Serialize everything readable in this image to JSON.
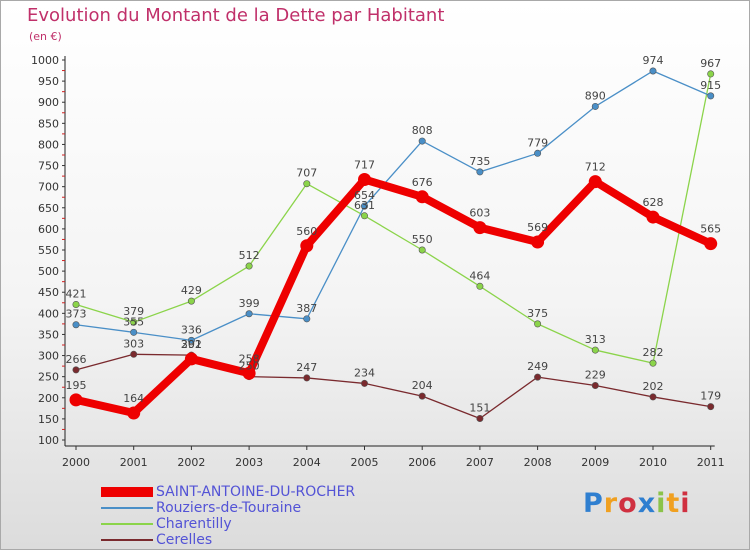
{
  "title": "Evolution du Montant de la Dette par Habitant",
  "subtitle": "(en €)",
  "watermark": {
    "text": "Proxiti"
  },
  "chart_data": {
    "type": "line",
    "x": [
      "2000",
      "2001",
      "2002",
      "2003",
      "2004",
      "2005",
      "2006",
      "2007",
      "2008",
      "2009",
      "2010",
      "2011"
    ],
    "ylim": [
      100,
      1000
    ],
    "yticks": [
      100,
      150,
      200,
      250,
      300,
      350,
      400,
      450,
      500,
      550,
      600,
      650,
      700,
      750,
      800,
      850,
      900,
      950,
      1000
    ],
    "grid": false,
    "legend_position": "bottom-left",
    "series": [
      {
        "name": "SAINT-ANTOINE-DU-ROCHER",
        "color": "#ee0000",
        "values": [
          195,
          164,
          292,
          258,
          560,
          717,
          676,
          603,
          569,
          712,
          628,
          565
        ]
      },
      {
        "name": "Rouziers-de-Touraine",
        "color": "#4a8fc7",
        "values": [
          373,
          355,
          336,
          399,
          387,
          654,
          808,
          735,
          779,
          890,
          974,
          915
        ]
      },
      {
        "name": "Charentilly",
        "color": "#8bd44a",
        "values": [
          421,
          379,
          429,
          512,
          707,
          631,
          550,
          464,
          375,
          313,
          282,
          967
        ]
      },
      {
        "name": "Cerelles",
        "color": "#7a2a2e",
        "values": [
          266,
          303,
          301,
          250,
          247,
          234,
          204,
          151,
          249,
          229,
          202,
          179
        ]
      }
    ]
  }
}
